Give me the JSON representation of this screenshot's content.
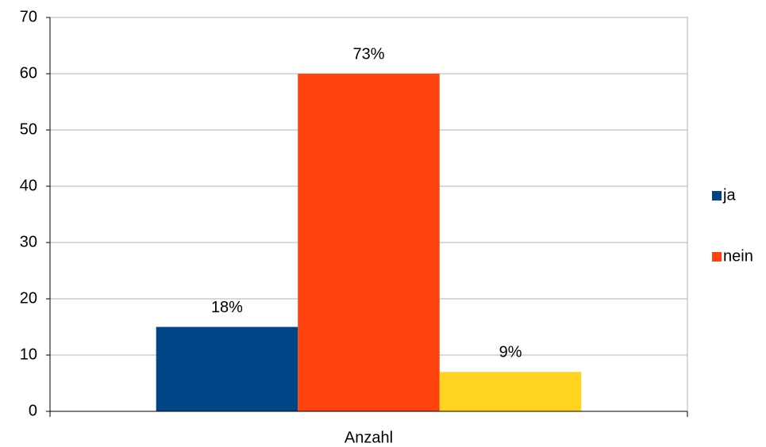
{
  "chart_data": {
    "type": "bar",
    "categories": [
      "Anzahl"
    ],
    "series": [
      {
        "name": "ja",
        "color": "#004586",
        "values": [
          15
        ],
        "value_labels": [
          "18%"
        ]
      },
      {
        "name": "nein",
        "color": "#ff420e",
        "values": [
          60
        ],
        "value_labels": [
          "73%"
        ]
      },
      {
        "name": null,
        "color": "#ffd320",
        "values": [
          7
        ],
        "value_labels": [
          "9%"
        ]
      }
    ],
    "ylim": [
      0,
      70
    ],
    "yticks": [
      0,
      10,
      20,
      30,
      40,
      50,
      60,
      70
    ],
    "grid": true,
    "legend": "right"
  }
}
